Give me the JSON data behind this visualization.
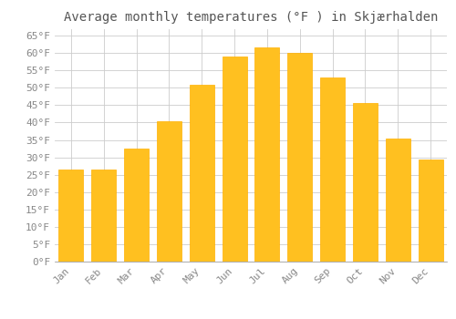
{
  "title": "Average monthly temperatures (°F ) in Skjærhalden",
  "months": [
    "Jan",
    "Feb",
    "Mar",
    "Apr",
    "May",
    "Jun",
    "Jul",
    "Aug",
    "Sep",
    "Oct",
    "Nov",
    "Dec"
  ],
  "values": [
    26.5,
    26.5,
    32.5,
    40.5,
    51.0,
    59.0,
    61.5,
    60.0,
    53.0,
    45.5,
    35.5,
    29.5
  ],
  "bar_color": "#FFC020",
  "bar_edge_color": "#FFB000",
  "background_color": "#FFFFFF",
  "grid_color": "#CCCCCC",
  "text_color": "#888888",
  "ylim": [
    0,
    67
  ],
  "yticks": [
    0,
    5,
    10,
    15,
    20,
    25,
    30,
    35,
    40,
    45,
    50,
    55,
    60,
    65
  ],
  "title_fontsize": 10,
  "tick_fontsize": 8,
  "font_family": "monospace"
}
